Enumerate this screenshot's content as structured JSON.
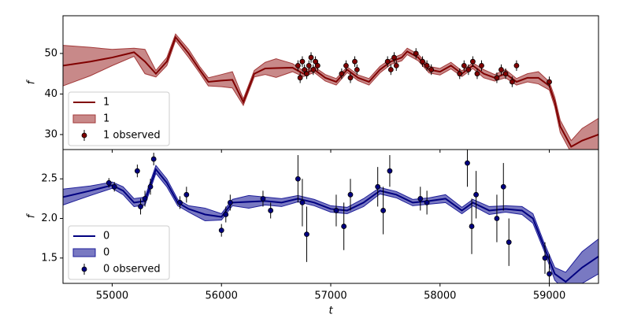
{
  "chart_data": [
    {
      "type": "line",
      "ylabel": "f",
      "xlim": [
        54550,
        59450
      ],
      "ylim": [
        26.3,
        59.3
      ],
      "yticks": [
        30,
        40,
        50
      ],
      "legend": "lower left",
      "x": [
        54550,
        54800,
        55000,
        55200,
        55300,
        55400,
        55500,
        55580,
        55700,
        55800,
        55880,
        56000,
        56100,
        56200,
        56300,
        56400,
        56500,
        56650,
        56750,
        56850,
        56950,
        57050,
        57150,
        57250,
        57350,
        57450,
        57550,
        57650,
        57700,
        57800,
        57900,
        58000,
        58100,
        58200,
        58300,
        58400,
        58500,
        58600,
        58700,
        58800,
        58900,
        59000,
        59050,
        59100,
        59200,
        59300,
        59450
      ],
      "series": [
        {
          "name": "1",
          "color": "#800000",
          "values": [
            47,
            48,
            49,
            50.3,
            48,
            45,
            48,
            54,
            50,
            46,
            43,
            43.3,
            43.5,
            38,
            45,
            46.3,
            46.4,
            46.5,
            45,
            46,
            44,
            43,
            46,
            44,
            43,
            46,
            48,
            49,
            50.5,
            49,
            46,
            45.5,
            47,
            45,
            47,
            45,
            44,
            45,
            43,
            44,
            44,
            42,
            38,
            32,
            27,
            28.5,
            30
          ]
        }
      ],
      "band": {
        "name": "1",
        "color": "#a33a3a",
        "lower": [
          42,
          44.5,
          47,
          49.3,
          45,
          44.2,
          47,
          53.2,
          49,
          45.2,
          42,
          41.8,
          41.5,
          37.2,
          44.2,
          44.8,
          44.1,
          45.5,
          44.3,
          45.3,
          43.2,
          42.2,
          45.3,
          43.3,
          42.2,
          45.2,
          47.3,
          48.2,
          49.7,
          48.2,
          45.2,
          44.7,
          46.2,
          44.3,
          46.3,
          44,
          43.2,
          44,
          42.2,
          43,
          42.5,
          41,
          36.8,
          30.5,
          25.5,
          25.5,
          26
        ],
        "upper": [
          52,
          51.5,
          51,
          51.3,
          51,
          45.8,
          49,
          54.8,
          51,
          46.8,
          44,
          44.8,
          45.5,
          38.8,
          45.8,
          47.8,
          48.7,
          47.5,
          45.7,
          46.7,
          44.8,
          43.8,
          46.7,
          44.7,
          43.8,
          46.8,
          48.7,
          49.8,
          51.3,
          49.8,
          46.8,
          46.3,
          47.8,
          45.7,
          47.7,
          46,
          44.8,
          46,
          43.8,
          45,
          45.5,
          43,
          39.2,
          33.5,
          28.5,
          31.5,
          34
        ]
      },
      "observed": {
        "name": "1 observed",
        "color": "#800000",
        "x": [
          56700,
          56720,
          56740,
          56760,
          56780,
          56800,
          56820,
          56840,
          56860,
          56880,
          57100,
          57140,
          57180,
          57220,
          57240,
          57520,
          57550,
          57580,
          57600,
          57780,
          57840,
          57880,
          57920,
          58180,
          58220,
          58260,
          58300,
          58340,
          58380,
          58520,
          58560,
          58600,
          58660,
          58700,
          59000
        ],
        "values": [
          47,
          44,
          48,
          46,
          45,
          47,
          49,
          46,
          48,
          47,
          45,
          47,
          44,
          48,
          46,
          48,
          46,
          49,
          47,
          50,
          48,
          47,
          46,
          45,
          47,
          46,
          48,
          45,
          47,
          44,
          46,
          45,
          43,
          47,
          43
        ],
        "errors": [
          1.3,
          1.3,
          1.3,
          1.3,
          1.3,
          1.3,
          1.3,
          1.3,
          1.3,
          1.3,
          1.3,
          1.3,
          1.3,
          1.3,
          1.3,
          1.3,
          1.3,
          1.3,
          1.3,
          1.3,
          1.3,
          1.3,
          1.3,
          1.3,
          1.3,
          1.3,
          1.3,
          1.3,
          1.3,
          1.3,
          1.3,
          1.3,
          1.3,
          1.3,
          1.3
        ]
      }
    },
    {
      "type": "line",
      "ylabel": "f",
      "xlabel": "t",
      "xlim": [
        54550,
        59450
      ],
      "ylim": [
        1.18,
        2.87
      ],
      "xticks": [
        55000,
        56000,
        57000,
        58000,
        59000
      ],
      "yticks": [
        1.5,
        {
          "value": 2,
          "label": "2.0"
        },
        2.5
      ],
      "legend": "lower left",
      "x": [
        54550,
        54800,
        55000,
        55100,
        55200,
        55300,
        55400,
        55500,
        55600,
        55700,
        55850,
        56000,
        56100,
        56250,
        56400,
        56550,
        56700,
        56850,
        57000,
        57150,
        57300,
        57450,
        57600,
        57750,
        57900,
        58050,
        58200,
        58300,
        58450,
        58600,
        58750,
        58850,
        58950,
        59050,
        59150,
        59300,
        59450
      ],
      "series": [
        {
          "name": "0",
          "color": "#000080",
          "values": [
            2.27,
            2.35,
            2.42,
            2.35,
            2.2,
            2.22,
            2.62,
            2.45,
            2.2,
            2.12,
            2.05,
            2.02,
            2.2,
            2.21,
            2.22,
            2.2,
            2.25,
            2.2,
            2.12,
            2.1,
            2.2,
            2.35,
            2.3,
            2.2,
            2.22,
            2.25,
            2.1,
            2.2,
            2.1,
            2.12,
            2.1,
            2,
            1.65,
            1.3,
            1.2,
            1.38,
            1.52
          ]
        }
      ],
      "band": {
        "name": "0",
        "color": "#1f1f99",
        "lower": [
          2.17,
          2.29,
          2.38,
          2.3,
          2.15,
          2.17,
          2.57,
          2.4,
          2.16,
          2.08,
          1.97,
          1.98,
          2.16,
          2.13,
          2.17,
          2.15,
          2.21,
          2.16,
          2.08,
          2.06,
          2.15,
          2.31,
          2.26,
          2.16,
          2.18,
          2.2,
          2.06,
          2.16,
          2.05,
          2.08,
          2.05,
          1.94,
          1.6,
          1.22,
          1.08,
          1.18,
          1.3
        ],
        "upper": [
          2.37,
          2.41,
          2.46,
          2.4,
          2.25,
          2.27,
          2.67,
          2.5,
          2.24,
          2.16,
          2.13,
          2.06,
          2.24,
          2.29,
          2.27,
          2.25,
          2.29,
          2.24,
          2.16,
          2.14,
          2.25,
          2.39,
          2.34,
          2.24,
          2.26,
          2.3,
          2.14,
          2.24,
          2.15,
          2.16,
          2.15,
          2.06,
          1.7,
          1.38,
          1.32,
          1.58,
          1.74
        ]
      },
      "observed": {
        "name": "0 observed",
        "color": "#000080",
        "x": [
          54970,
          55020,
          55230,
          55260,
          55300,
          55350,
          55380,
          55620,
          55680,
          56000,
          56040,
          56080,
          56380,
          56450,
          56700,
          56740,
          56780,
          57050,
          57120,
          57180,
          57430,
          57480,
          57540,
          57820,
          57880,
          58250,
          58290,
          58330,
          58520,
          58580,
          58630,
          58960,
          59000
        ],
        "values": [
          2.45,
          2.4,
          2.6,
          2.15,
          2.25,
          2.4,
          2.75,
          2.2,
          2.3,
          1.85,
          2.05,
          2.2,
          2.25,
          2.1,
          2.5,
          2.2,
          1.8,
          2.1,
          1.9,
          2.3,
          2.4,
          2.1,
          2.6,
          2.25,
          2.2,
          2.7,
          1.9,
          2.3,
          2,
          2.4,
          1.7,
          1.5,
          1.3
        ],
        "errors": [
          0.06,
          0.06,
          0.08,
          0.1,
          0.1,
          0.1,
          0.08,
          0.08,
          0.1,
          0.08,
          0.1,
          0.1,
          0.1,
          0.1,
          0.3,
          0.3,
          0.35,
          0.2,
          0.3,
          0.2,
          0.25,
          0.3,
          0.2,
          0.15,
          0.15,
          0.3,
          0.35,
          0.3,
          0.3,
          0.3,
          0.3,
          0.2,
          0.25
        ]
      }
    }
  ]
}
